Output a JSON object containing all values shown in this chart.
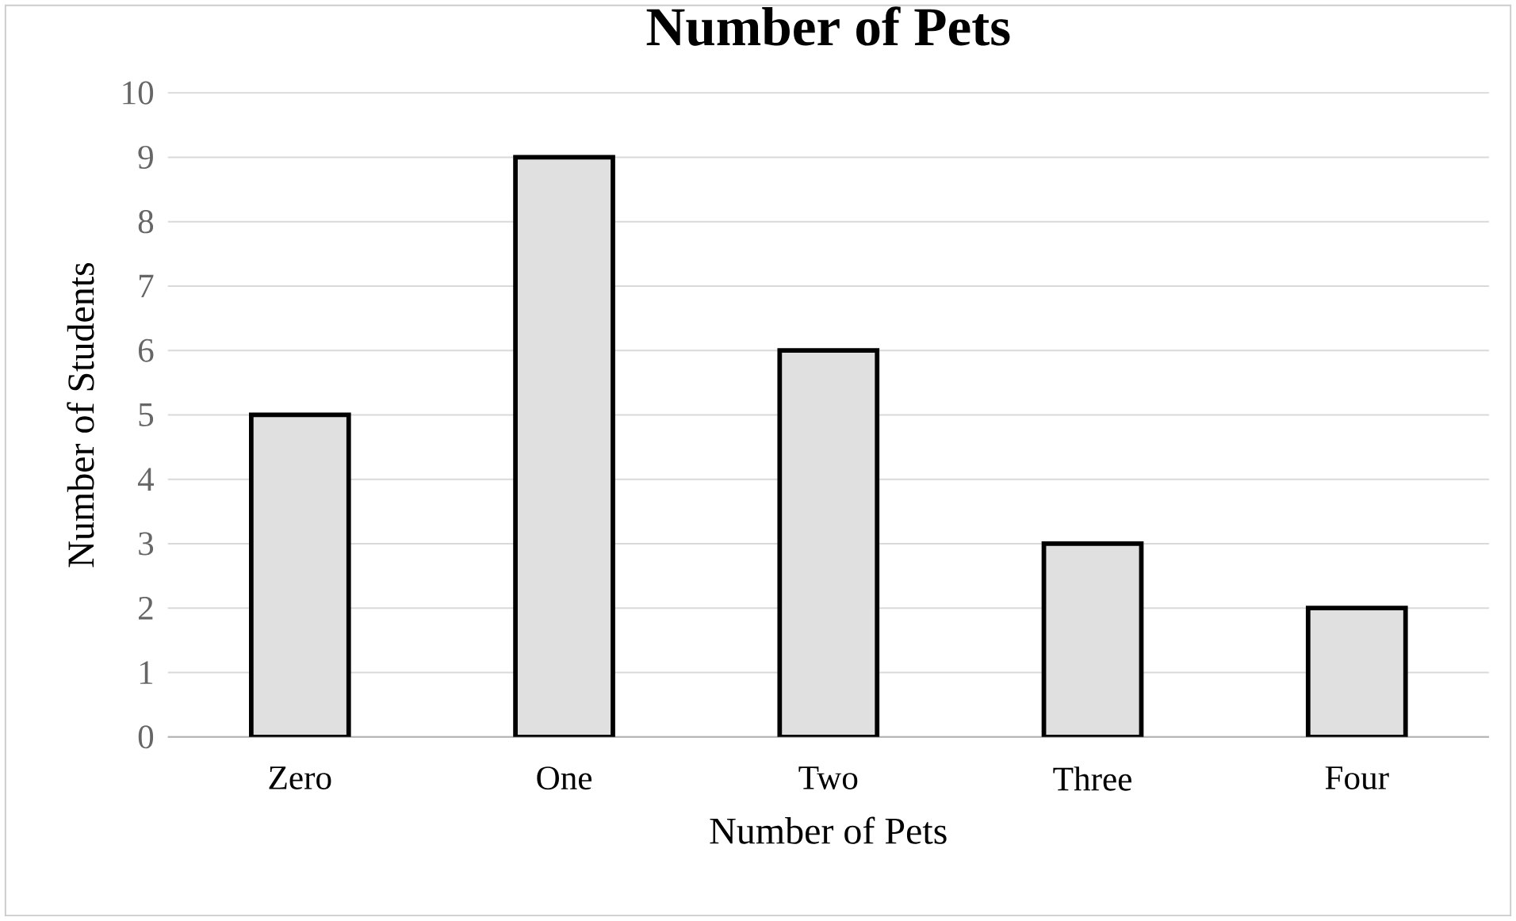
{
  "chart_data": {
    "type": "bar",
    "title": "Number of Pets",
    "xlabel": "Number of Pets",
    "ylabel": "Number of Students",
    "categories": [
      "Zero",
      "One",
      "Two",
      "Three",
      "Four"
    ],
    "values": [
      5,
      9,
      6,
      3,
      2
    ],
    "color": "#e0e0e0",
    "ylim": [
      0,
      10
    ],
    "yticks": [
      0,
      1,
      2,
      3,
      4,
      5,
      6,
      7,
      8,
      9,
      10
    ],
    "grid": "y"
  }
}
